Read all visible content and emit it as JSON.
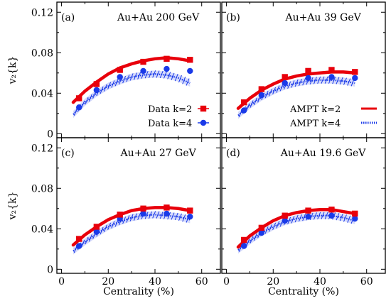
{
  "chart_data": {
    "type": "scatter",
    "xlabel": "Centrality (%)",
    "ylabel": "v₂{k}",
    "xlim": [
      -2,
      68
    ],
    "ylim": [
      -0.004,
      0.13
    ],
    "xticks": [
      "0",
      "20",
      "40",
      "60"
    ],
    "xtick_values": [
      0,
      20,
      40,
      60
    ],
    "yticks": [
      "0",
      "0.04",
      "0.08",
      "0.12"
    ],
    "ytick_values": [
      0,
      0.04,
      0.08,
      0.12
    ],
    "legend_data": [
      {
        "label": "Data k=2",
        "color": "#e8000b",
        "marker": "square"
      },
      {
        "label": "Data k=4",
        "color": "#1a3ae8",
        "marker": "circle"
      }
    ],
    "legend_model": [
      {
        "label": "AMPT k=2",
        "color": "#e8000b",
        "style": "solid"
      },
      {
        "label": "AMPT k=4",
        "color": "#1a3ae8",
        "style": "dotted"
      }
    ],
    "panels": [
      {
        "tag": "(a)",
        "title": "Au+Au 200 GeV",
        "data_x": [
          7.5,
          15,
          25,
          35,
          45,
          55
        ],
        "data_k2": [
          0.035,
          0.049,
          0.063,
          0.071,
          0.074,
          0.073
        ],
        "data_k4": [
          0.026,
          0.043,
          0.056,
          0.062,
          0.064,
          0.062
        ],
        "model_x": [
          5,
          10,
          15,
          20,
          25,
          30,
          35,
          40,
          45,
          50,
          55
        ],
        "model_k2": [
          0.031,
          0.042,
          0.051,
          0.059,
          0.065,
          0.069,
          0.072,
          0.074,
          0.075,
          0.074,
          0.072
        ],
        "model_k4": [
          0.019,
          0.031,
          0.04,
          0.047,
          0.052,
          0.056,
          0.058,
          0.059,
          0.058,
          0.055,
          0.05
        ]
      },
      {
        "tag": "(b)",
        "title": "Au+Au 39 GeV",
        "data_x": [
          7.5,
          15,
          25,
          35,
          45,
          55
        ],
        "data_k2": [
          0.031,
          0.044,
          0.056,
          0.062,
          0.063,
          0.061
        ],
        "data_k4": [
          0.023,
          0.038,
          0.05,
          0.055,
          0.056,
          0.055
        ],
        "model_x": [
          5,
          10,
          15,
          20,
          25,
          30,
          35,
          40,
          45,
          50,
          55
        ],
        "model_k2": [
          0.025,
          0.035,
          0.043,
          0.049,
          0.054,
          0.057,
          0.059,
          0.06,
          0.061,
          0.061,
          0.06
        ],
        "model_k4": [
          0.018,
          0.028,
          0.036,
          0.042,
          0.047,
          0.05,
          0.052,
          0.053,
          0.053,
          0.052,
          0.05
        ]
      },
      {
        "tag": "(c)",
        "title": "Au+Au 27 GeV",
        "data_x": [
          7.5,
          15,
          25,
          35,
          45,
          55
        ],
        "data_k2": [
          0.03,
          0.042,
          0.054,
          0.06,
          0.061,
          0.058
        ],
        "data_k4": [
          0.023,
          0.037,
          0.05,
          0.055,
          0.055,
          0.052
        ],
        "model_x": [
          5,
          10,
          15,
          20,
          25,
          30,
          35,
          40,
          45,
          50,
          55
        ],
        "model_k2": [
          0.024,
          0.034,
          0.042,
          0.049,
          0.054,
          0.058,
          0.06,
          0.061,
          0.061,
          0.06,
          0.058
        ],
        "model_k4": [
          0.018,
          0.027,
          0.035,
          0.042,
          0.047,
          0.051,
          0.053,
          0.054,
          0.053,
          0.052,
          0.049
        ]
      },
      {
        "tag": "(d)",
        "title": "Au+Au 19.6 GeV",
        "data_x": [
          7.5,
          15,
          25,
          35,
          45,
          55
        ],
        "data_k2": [
          0.029,
          0.041,
          0.053,
          0.058,
          0.059,
          0.055
        ],
        "data_k4": [
          0.023,
          0.036,
          0.048,
          0.052,
          0.053,
          0.05
        ],
        "model_x": [
          5,
          10,
          15,
          20,
          25,
          30,
          35,
          40,
          45,
          50,
          55
        ],
        "model_k2": [
          0.022,
          0.033,
          0.041,
          0.048,
          0.053,
          0.056,
          0.058,
          0.059,
          0.059,
          0.057,
          0.055
        ],
        "model_k4": [
          0.019,
          0.028,
          0.036,
          0.042,
          0.047,
          0.05,
          0.052,
          0.053,
          0.053,
          0.051,
          0.048
        ]
      }
    ]
  }
}
